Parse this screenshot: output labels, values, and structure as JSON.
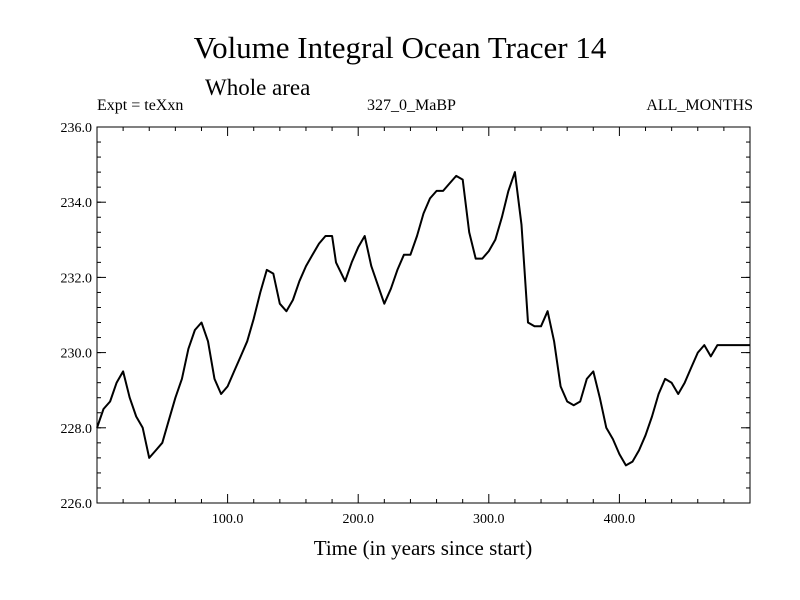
{
  "chart_data": {
    "type": "line",
    "title": "Volume Integral Ocean Tracer 14",
    "subtitle": "Whole area",
    "annotations": {
      "left": "Expt = teXxn",
      "center": "327_0_MaBP",
      "right": "ALL_MONTHS"
    },
    "xlabel": "Time (in years since start)",
    "ylabel": "",
    "xlim": [
      0,
      500
    ],
    "ylim": [
      226.0,
      236.0
    ],
    "xticks": [
      100,
      200,
      300,
      400
    ],
    "xtick_labels": [
      "100.0",
      "200.0",
      "300.0",
      "400.0"
    ],
    "yticks": [
      226,
      228,
      230,
      232,
      234,
      236
    ],
    "ytick_labels": [
      "226.0",
      "228.0",
      "230.0",
      "232.0",
      "234.0",
      "236.0"
    ],
    "grid": false,
    "series": [
      {
        "name": "Volume Integral Ocean Tracer 14",
        "color": "#000000",
        "x": [
          0,
          5,
          10,
          15,
          20,
          25,
          30,
          35,
          40,
          45,
          50,
          55,
          60,
          65,
          70,
          75,
          80,
          85,
          90,
          95,
          100,
          105,
          110,
          115,
          120,
          125,
          130,
          135,
          140,
          145,
          150,
          155,
          160,
          165,
          170,
          175,
          180,
          183,
          190,
          195,
          200,
          205,
          210,
          215,
          220,
          225,
          230,
          235,
          240,
          245,
          250,
          255,
          260,
          265,
          270,
          275,
          280,
          285,
          290,
          295,
          300,
          305,
          310,
          315,
          320,
          325,
          330,
          335,
          340,
          345,
          350,
          355,
          360,
          365,
          370,
          375,
          380,
          385,
          390,
          395,
          400,
          405,
          410,
          415,
          420,
          425,
          430,
          435,
          440,
          445,
          450,
          455,
          460,
          465,
          470,
          475,
          480,
          485,
          490,
          495,
          500
        ],
        "values": [
          228.0,
          228.5,
          228.7,
          229.2,
          229.5,
          228.8,
          228.3,
          228.0,
          227.2,
          227.4,
          227.6,
          228.2,
          228.8,
          229.3,
          230.1,
          230.6,
          230.8,
          230.3,
          229.3,
          228.9,
          229.1,
          229.5,
          229.9,
          230.3,
          230.9,
          231.6,
          232.2,
          232.1,
          231.3,
          231.1,
          231.4,
          231.9,
          232.3,
          232.6,
          232.9,
          233.1,
          233.1,
          232.4,
          231.9,
          232.4,
          232.8,
          233.1,
          232.3,
          231.8,
          231.3,
          231.7,
          232.2,
          232.6,
          232.6,
          233.1,
          233.7,
          234.1,
          234.3,
          234.3,
          234.5,
          234.7,
          234.6,
          233.2,
          232.5,
          232.5,
          232.7,
          233.0,
          233.6,
          234.3,
          234.8,
          233.4,
          230.8,
          230.7,
          230.7,
          231.1,
          230.3,
          229.1,
          228.7,
          228.6,
          228.7,
          229.3,
          229.5,
          228.8,
          228.0,
          227.7,
          227.3,
          227.0,
          227.1,
          227.4,
          227.8,
          228.3,
          228.9,
          229.3,
          229.2,
          228.9,
          229.2,
          229.6,
          230.0,
          230.2,
          229.9,
          230.2,
          230.2,
          230.2,
          230.2,
          230.2,
          230.2
        ]
      }
    ]
  }
}
